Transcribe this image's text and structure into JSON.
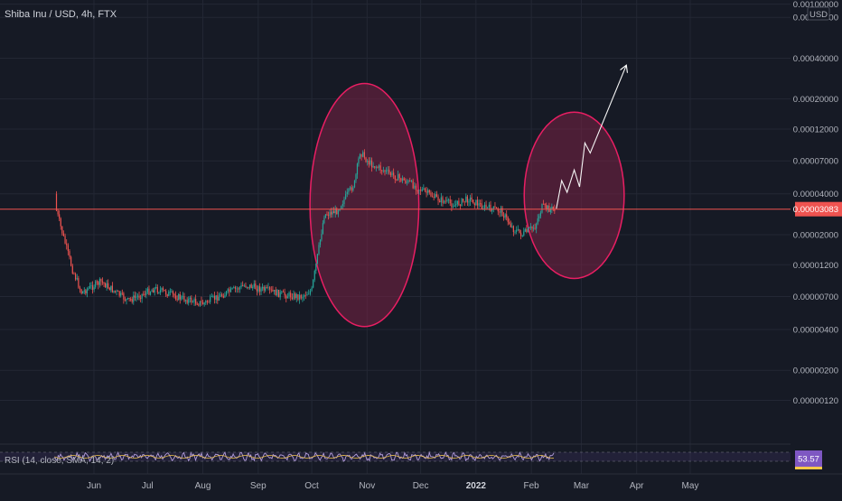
{
  "header": {
    "symbol_title": "Shiba Inu / USD, 4h, FTX",
    "currency_badge": "USD"
  },
  "price_badge": "0.00003083",
  "rsi": {
    "label": "RSI (14, close, SMA, 14, 2)",
    "value_badge": "53.57"
  },
  "chart_data": {
    "type": "candlestick",
    "title": "Shiba Inu / USD, 4h, FTX",
    "y_scale": "log",
    "ylim": [
      8e-07,
      0.00095
    ],
    "y_tick_labels": [
      "0.00100000",
      "0.00080000",
      "0.00040000",
      "0.00020000",
      "0.00012000",
      "0.00007000",
      "0.00004000",
      "0.00002000",
      "0.00001200",
      "0.00000700",
      "0.00000400",
      "0.00000200",
      "0.00000120"
    ],
    "x_tick_labels": [
      "Jun",
      "Jul",
      "Aug",
      "Sep",
      "Oct",
      "Nov",
      "Dec",
      "2022",
      "Feb",
      "Mar",
      "Apr",
      "May"
    ],
    "last_price": 3.083e-05,
    "price_path": [
      {
        "x": "2021-05-10",
        "y": 4e-05
      },
      {
        "x": "2021-05-11",
        "y": 3e-05
      },
      {
        "x": "2021-05-15",
        "y": 1.9e-05
      },
      {
        "x": "2021-05-20",
        "y": 1.1e-05
      },
      {
        "x": "2021-05-25",
        "y": 7.5e-06
      },
      {
        "x": "2021-06-05",
        "y": 9e-06
      },
      {
        "x": "2021-06-20",
        "y": 6.5e-06
      },
      {
        "x": "2021-07-05",
        "y": 8e-06
      },
      {
        "x": "2021-07-20",
        "y": 6.8e-06
      },
      {
        "x": "2021-08-01",
        "y": 6.2e-06
      },
      {
        "x": "2021-08-15",
        "y": 7.5e-06
      },
      {
        "x": "2021-08-25",
        "y": 8.5e-06
      },
      {
        "x": "2021-09-05",
        "y": 7.8e-06
      },
      {
        "x": "2021-09-15",
        "y": 7.2e-06
      },
      {
        "x": "2021-09-25",
        "y": 7e-06
      },
      {
        "x": "2021-10-01",
        "y": 7.8e-06
      },
      {
        "x": "2021-10-05",
        "y": 1.6e-05
      },
      {
        "x": "2021-10-08",
        "y": 2.8e-05
      },
      {
        "x": "2021-10-15",
        "y": 3e-05
      },
      {
        "x": "2021-10-25",
        "y": 4.8e-05
      },
      {
        "x": "2021-10-28",
        "y": 8.2e-05
      },
      {
        "x": "2021-11-02",
        "y": 6.8e-05
      },
      {
        "x": "2021-11-15",
        "y": 5.5e-05
      },
      {
        "x": "2021-11-25",
        "y": 4.8e-05
      },
      {
        "x": "2021-12-01",
        "y": 4.3e-05
      },
      {
        "x": "2021-12-10",
        "y": 3.7e-05
      },
      {
        "x": "2021-12-20",
        "y": 3.3e-05
      },
      {
        "x": "2021-12-28",
        "y": 3.7e-05
      },
      {
        "x": "2022-01-05",
        "y": 3.2e-05
      },
      {
        "x": "2022-01-15",
        "y": 3e-05
      },
      {
        "x": "2022-01-22",
        "y": 2.2e-05
      },
      {
        "x": "2022-01-27",
        "y": 2e-05
      },
      {
        "x": "2022-02-03",
        "y": 2.3e-05
      },
      {
        "x": "2022-02-07",
        "y": 3.2e-05
      },
      {
        "x": "2022-02-11",
        "y": 3.1e-05
      },
      {
        "x": "2022-02-14",
        "y": 3.083e-05
      }
    ],
    "projection_path": [
      {
        "x": "2022-02-15",
        "y": 3.1e-05
      },
      {
        "x": "2022-02-18",
        "y": 5e-05
      },
      {
        "x": "2022-02-21",
        "y": 4.1e-05
      },
      {
        "x": "2022-02-25",
        "y": 6e-05
      },
      {
        "x": "2022-02-28",
        "y": 4.5e-05
      },
      {
        "x": "2022-03-03",
        "y": 9.5e-05
      },
      {
        "x": "2022-03-06",
        "y": 8e-05
      },
      {
        "x": "2022-03-09",
        "y": 0.0001
      },
      {
        "x": "2022-03-26",
        "y": 0.00035
      }
    ],
    "highlight_ellipses": [
      {
        "x_from": "2021-09-30",
        "x_to": "2021-11-30",
        "y_from": 4.2e-06,
        "y_to": 0.00026
      },
      {
        "x_from": "2022-01-28",
        "x_to": "2022-03-25",
        "y_from": 9.5e-06,
        "y_to": 0.00016
      }
    ],
    "rsi_value": 53.57,
    "grid": true,
    "colors": {
      "background": "#161a25",
      "up": "#26a69a",
      "down": "#ef5350",
      "price_line": "#ef5350",
      "ellipse_fill": "#7a2346",
      "ellipse_stroke": "#e91e63",
      "rsi_line": "#b39ddb",
      "rsi_badge": "#7e57c2"
    }
  }
}
